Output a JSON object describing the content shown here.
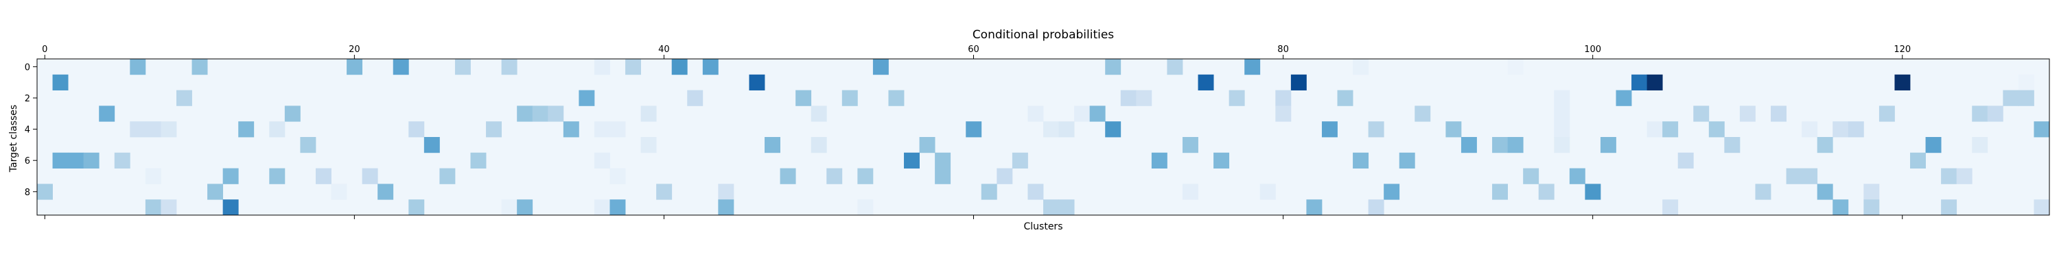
{
  "chart_data": {
    "type": "heatmap",
    "title": "Conditional probabilities",
    "xlabel": "Clusters",
    "ylabel": "Target classes",
    "n_cols": 130,
    "n_rows": 10,
    "x_ticks": [
      0,
      20,
      40,
      60,
      80,
      100,
      120
    ],
    "y_ticks": [
      0,
      2,
      4,
      6,
      8
    ],
    "x_tick_position": "top",
    "colormap": "Blues",
    "value_range": [
      0,
      1
    ],
    "background_value": 0.04,
    "cells": [
      [
        0,
        6,
        0.45
      ],
      [
        0,
        10,
        0.4
      ],
      [
        0,
        20,
        0.45
      ],
      [
        0,
        23,
        0.55
      ],
      [
        0,
        27,
        0.3
      ],
      [
        0,
        30,
        0.3
      ],
      [
        0,
        36,
        0.1
      ],
      [
        0,
        38,
        0.3
      ],
      [
        0,
        41,
        0.6
      ],
      [
        0,
        43,
        0.55
      ],
      [
        0,
        54,
        0.55
      ],
      [
        0,
        69,
        0.4
      ],
      [
        0,
        73,
        0.3
      ],
      [
        0,
        78,
        0.55
      ],
      [
        0,
        85,
        0.08
      ],
      [
        0,
        95,
        0.06
      ],
      [
        1,
        1,
        0.6
      ],
      [
        1,
        46,
        0.8
      ],
      [
        1,
        75,
        0.8
      ],
      [
        1,
        81,
        0.9
      ],
      [
        1,
        103,
        0.75
      ],
      [
        1,
        104,
        1.0
      ],
      [
        1,
        120,
        1.0
      ],
      [
        1,
        128,
        0.06
      ],
      [
        2,
        9,
        0.3
      ],
      [
        2,
        35,
        0.5
      ],
      [
        2,
        42,
        0.25
      ],
      [
        2,
        49,
        0.4
      ],
      [
        2,
        52,
        0.35
      ],
      [
        2,
        55,
        0.35
      ],
      [
        2,
        70,
        0.25
      ],
      [
        2,
        71,
        0.2
      ],
      [
        2,
        77,
        0.3
      ],
      [
        2,
        80,
        0.25
      ],
      [
        2,
        84,
        0.35
      ],
      [
        2,
        98,
        0.1
      ],
      [
        2,
        102,
        0.5
      ],
      [
        2,
        127,
        0.3
      ],
      [
        2,
        128,
        0.3
      ],
      [
        3,
        4,
        0.5
      ],
      [
        3,
        16,
        0.4
      ],
      [
        3,
        31,
        0.4
      ],
      [
        3,
        32,
        0.35
      ],
      [
        3,
        33,
        0.3
      ],
      [
        3,
        39,
        0.15
      ],
      [
        3,
        50,
        0.15
      ],
      [
        3,
        64,
        0.1
      ],
      [
        3,
        67,
        0.1
      ],
      [
        3,
        68,
        0.45
      ],
      [
        3,
        80,
        0.2
      ],
      [
        3,
        89,
        0.3
      ],
      [
        3,
        98,
        0.1
      ],
      [
        3,
        107,
        0.3
      ],
      [
        3,
        110,
        0.2
      ],
      [
        3,
        112,
        0.25
      ],
      [
        3,
        119,
        0.3
      ],
      [
        3,
        125,
        0.3
      ],
      [
        3,
        126,
        0.25
      ],
      [
        4,
        6,
        0.2
      ],
      [
        4,
        7,
        0.2
      ],
      [
        4,
        8,
        0.15
      ],
      [
        4,
        13,
        0.45
      ],
      [
        4,
        15,
        0.15
      ],
      [
        4,
        24,
        0.25
      ],
      [
        4,
        29,
        0.3
      ],
      [
        4,
        34,
        0.45
      ],
      [
        4,
        36,
        0.1
      ],
      [
        4,
        37,
        0.1
      ],
      [
        4,
        60,
        0.55
      ],
      [
        4,
        65,
        0.12
      ],
      [
        4,
        66,
        0.15
      ],
      [
        4,
        69,
        0.6
      ],
      [
        4,
        83,
        0.55
      ],
      [
        4,
        86,
        0.3
      ],
      [
        4,
        91,
        0.4
      ],
      [
        4,
        98,
        0.1
      ],
      [
        4,
        104,
        0.1
      ],
      [
        4,
        105,
        0.35
      ],
      [
        4,
        108,
        0.35
      ],
      [
        4,
        114,
        0.1
      ],
      [
        4,
        116,
        0.2
      ],
      [
        4,
        117,
        0.25
      ],
      [
        4,
        129,
        0.45
      ],
      [
        5,
        17,
        0.35
      ],
      [
        5,
        25,
        0.55
      ],
      [
        5,
        39,
        0.12
      ],
      [
        5,
        47,
        0.45
      ],
      [
        5,
        50,
        0.15
      ],
      [
        5,
        57,
        0.4
      ],
      [
        5,
        74,
        0.4
      ],
      [
        5,
        92,
        0.5
      ],
      [
        5,
        94,
        0.4
      ],
      [
        5,
        95,
        0.45
      ],
      [
        5,
        98,
        0.12
      ],
      [
        5,
        101,
        0.45
      ],
      [
        5,
        109,
        0.3
      ],
      [
        5,
        115,
        0.35
      ],
      [
        5,
        122,
        0.55
      ],
      [
        5,
        125,
        0.12
      ],
      [
        6,
        1,
        0.5
      ],
      [
        6,
        2,
        0.5
      ],
      [
        6,
        3,
        0.45
      ],
      [
        6,
        5,
        0.3
      ],
      [
        6,
        28,
        0.35
      ],
      [
        6,
        36,
        0.1
      ],
      [
        6,
        56,
        0.65
      ],
      [
        6,
        58,
        0.4
      ],
      [
        6,
        63,
        0.3
      ],
      [
        6,
        72,
        0.5
      ],
      [
        6,
        76,
        0.45
      ],
      [
        6,
        85,
        0.45
      ],
      [
        6,
        88,
        0.45
      ],
      [
        6,
        106,
        0.25
      ],
      [
        6,
        121,
        0.35
      ],
      [
        7,
        7,
        0.08
      ],
      [
        7,
        12,
        0.45
      ],
      [
        7,
        15,
        0.4
      ],
      [
        7,
        18,
        0.25
      ],
      [
        7,
        21,
        0.25
      ],
      [
        7,
        26,
        0.35
      ],
      [
        7,
        37,
        0.08
      ],
      [
        7,
        48,
        0.4
      ],
      [
        7,
        51,
        0.3
      ],
      [
        7,
        53,
        0.35
      ],
      [
        7,
        58,
        0.4
      ],
      [
        7,
        62,
        0.25
      ],
      [
        7,
        96,
        0.35
      ],
      [
        7,
        99,
        0.45
      ],
      [
        7,
        113,
        0.3
      ],
      [
        7,
        114,
        0.3
      ],
      [
        7,
        123,
        0.3
      ],
      [
        7,
        124,
        0.2
      ],
      [
        8,
        0,
        0.35
      ],
      [
        8,
        11,
        0.4
      ],
      [
        8,
        19,
        0.08
      ],
      [
        8,
        22,
        0.45
      ],
      [
        8,
        40,
        0.3
      ],
      [
        8,
        44,
        0.2
      ],
      [
        8,
        61,
        0.35
      ],
      [
        8,
        64,
        0.25
      ],
      [
        8,
        74,
        0.1
      ],
      [
        8,
        79,
        0.1
      ],
      [
        8,
        87,
        0.5
      ],
      [
        8,
        94,
        0.35
      ],
      [
        8,
        97,
        0.3
      ],
      [
        8,
        100,
        0.6
      ],
      [
        8,
        111,
        0.3
      ],
      [
        8,
        115,
        0.45
      ],
      [
        8,
        118,
        0.2
      ],
      [
        9,
        7,
        0.35
      ],
      [
        9,
        8,
        0.2
      ],
      [
        9,
        12,
        0.7
      ],
      [
        9,
        24,
        0.35
      ],
      [
        9,
        30,
        0.08
      ],
      [
        9,
        31,
        0.45
      ],
      [
        9,
        36,
        0.1
      ],
      [
        9,
        37,
        0.5
      ],
      [
        9,
        44,
        0.45
      ],
      [
        9,
        53,
        0.08
      ],
      [
        9,
        65,
        0.3
      ],
      [
        9,
        66,
        0.3
      ],
      [
        9,
        82,
        0.45
      ],
      [
        9,
        86,
        0.25
      ],
      [
        9,
        105,
        0.2
      ],
      [
        9,
        116,
        0.45
      ],
      [
        9,
        118,
        0.3
      ],
      [
        9,
        123,
        0.3
      ],
      [
        9,
        129,
        0.2
      ]
    ]
  }
}
